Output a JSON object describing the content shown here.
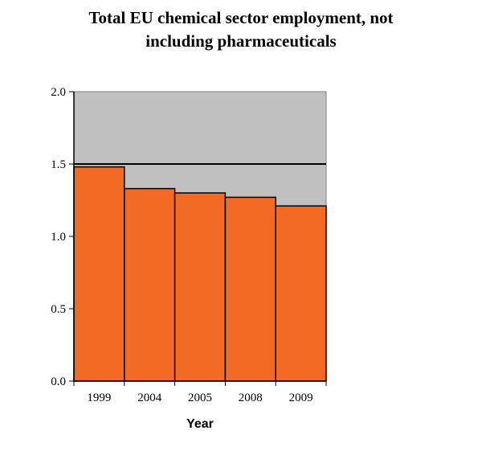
{
  "chart_data": {
    "type": "bar",
    "title_lines": [
      "Total EU chemical sector employment, not",
      "including pharmaceuticals"
    ],
    "xlabel": "Year",
    "ylabel": "",
    "categories": [
      "1999",
      "2004",
      "2005",
      "2008",
      "2009"
    ],
    "values": [
      1.48,
      1.33,
      1.3,
      1.27,
      1.21
    ],
    "ylim": [
      0,
      2.0
    ],
    "yticks": [
      "0.0",
      "0.5",
      "1.0",
      "1.5",
      "2.0"
    ],
    "grid": false,
    "legend": "none",
    "colors": {
      "bar": "#f26a24",
      "plot_background": "#c0c0c0",
      "reference_line": "#000000"
    },
    "reference_line_value": 1.5
  }
}
